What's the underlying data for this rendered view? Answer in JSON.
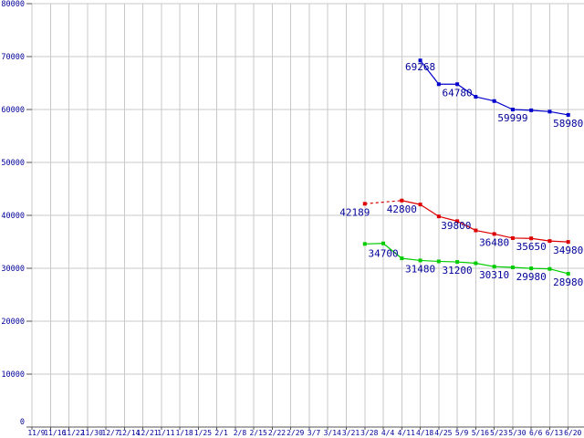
{
  "chart_data": {
    "type": "line",
    "title": "",
    "xlabel": "",
    "ylabel": "",
    "background_color": "#ffffff",
    "grid": true,
    "grid_color": "#c9c9c9",
    "axis_color": "#555555",
    "label_color": "#000099",
    "legend": "none",
    "x_tick_labels": [
      "11/9",
      "11/16",
      "11/22",
      "11/30",
      "12/7",
      "12/14",
      "12/21",
      "1/11",
      "1/18",
      "1/25",
      "2/1",
      "2/8",
      "2/15",
      "2/22",
      "2/29",
      "3/7",
      "3/14",
      "3/21",
      "3/28",
      "4/4",
      "4/11",
      "4/18",
      "4/25",
      "5/9",
      "5/16",
      "5/23",
      "5/30",
      "6/6",
      "6/13",
      "6/20"
    ],
    "y_axis": {
      "min": 0,
      "max": 80000,
      "step": 10000,
      "tick_labels": [
        "0",
        "10000",
        "20000",
        "30000",
        "40000",
        "50000",
        "60000",
        "70000",
        "80000"
      ]
    },
    "series": [
      {
        "name": "blue-price-series",
        "color": "#0000cc",
        "points": [
          {
            "x": "4/18",
            "value": 69268,
            "label": "69268",
            "label_dy": 2
          },
          {
            "x": "4/25",
            "value": 64780
          },
          {
            "x": "5/9",
            "value": 64780,
            "label": "64780"
          },
          {
            "x": "5/16",
            "value": 62400
          },
          {
            "x": "5/23",
            "value": 61600
          },
          {
            "x": "5/30",
            "value": 59999,
            "label": "59999"
          },
          {
            "x": "6/6",
            "value": 59850
          },
          {
            "x": "6/13",
            "value": 59600
          },
          {
            "x": "6/20",
            "value": 58980,
            "label": "58980"
          }
        ]
      },
      {
        "name": "red-price-series",
        "color": "#dd0000",
        "points": [
          {
            "x": "3/28",
            "value": 42189,
            "label": "42189",
            "label_dx": -11
          },
          {
            "x": "4/4",
            "value": null
          },
          {
            "x": "4/11",
            "value": 42800,
            "label": "42800"
          },
          {
            "x": "4/18",
            "value": 42050
          },
          {
            "x": "4/25",
            "value": 39800,
            "label": "39800",
            "label_dx": 19,
            "label_dy": 5
          },
          {
            "x": "5/9",
            "value": 38900
          },
          {
            "x": "5/16",
            "value": 37150
          },
          {
            "x": "5/23",
            "value": 36480,
            "label": "36480"
          },
          {
            "x": "5/30",
            "value": 35700
          },
          {
            "x": "6/6",
            "value": 35650,
            "label": "35650"
          },
          {
            "x": "6/13",
            "value": 35150
          },
          {
            "x": "6/20",
            "value": 34980,
            "label": "34980"
          }
        ]
      },
      {
        "name": "green-price-series",
        "color": "#00cc00",
        "points": [
          {
            "x": "3/28",
            "value": 34600
          },
          {
            "x": "4/4",
            "value": 34700,
            "label": "34700",
            "label_dy": 6
          },
          {
            "x": "4/11",
            "value": 31880
          },
          {
            "x": "4/18",
            "value": 31480,
            "label": "31480"
          },
          {
            "x": "4/25",
            "value": 31300
          },
          {
            "x": "5/9",
            "value": 31200,
            "label": "31200"
          },
          {
            "x": "5/16",
            "value": 30950
          },
          {
            "x": "5/23",
            "value": 30310,
            "label": "30310"
          },
          {
            "x": "5/30",
            "value": 30170
          },
          {
            "x": "6/6",
            "value": 29980,
            "label": "29980"
          },
          {
            "x": "6/13",
            "value": 29880
          },
          {
            "x": "6/20",
            "value": 28980,
            "label": "28980"
          }
        ]
      }
    ]
  }
}
